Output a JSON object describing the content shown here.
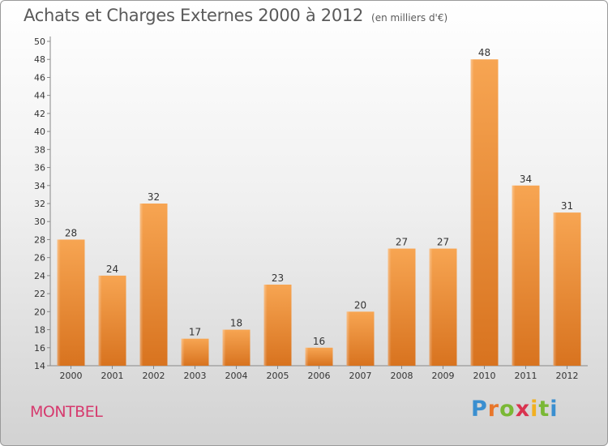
{
  "chart_data": {
    "type": "bar",
    "title": "Achats et Charges Externes 2000 à 2012",
    "subtitle": "(en milliers d'€)",
    "categories": [
      "2000",
      "2001",
      "2002",
      "2003",
      "2004",
      "2005",
      "2006",
      "2007",
      "2008",
      "2009",
      "2010",
      "2011",
      "2012"
    ],
    "values": [
      28,
      24,
      32,
      17,
      18,
      23,
      16,
      20,
      27,
      27,
      48,
      34,
      31
    ],
    "ylim": [
      14,
      50
    ],
    "ytick_step": 2,
    "grid": false,
    "bar_color": "#f0963c"
  },
  "footer": {
    "commune": "MONTBEL",
    "brand_letters": [
      "P",
      "r",
      "o",
      "x",
      "i",
      "t",
      "i"
    ]
  }
}
